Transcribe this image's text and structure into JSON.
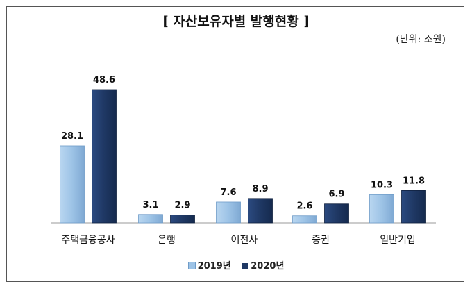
{
  "title": "[ 자산보유자별 발행현황 ]",
  "unit": "(단위: 조원)",
  "colors": {
    "2019": "#9dc3e6",
    "2020": "#1f3864"
  },
  "chart_data": {
    "type": "bar",
    "categories": [
      "주택금융공사",
      "은행",
      "여전사",
      "증권",
      "일반기업"
    ],
    "series": [
      {
        "name": "2019년",
        "values": [
          28.1,
          3.1,
          7.6,
          2.6,
          10.3
        ]
      },
      {
        "name": "2020년",
        "values": [
          48.6,
          2.9,
          8.9,
          6.9,
          11.8
        ]
      }
    ],
    "title": "[ 자산보유자별 발행현황 ]",
    "unit": "(단위: 조원)",
    "legend_position": "bottom",
    "grid": false,
    "ylim": [
      0,
      50
    ]
  }
}
